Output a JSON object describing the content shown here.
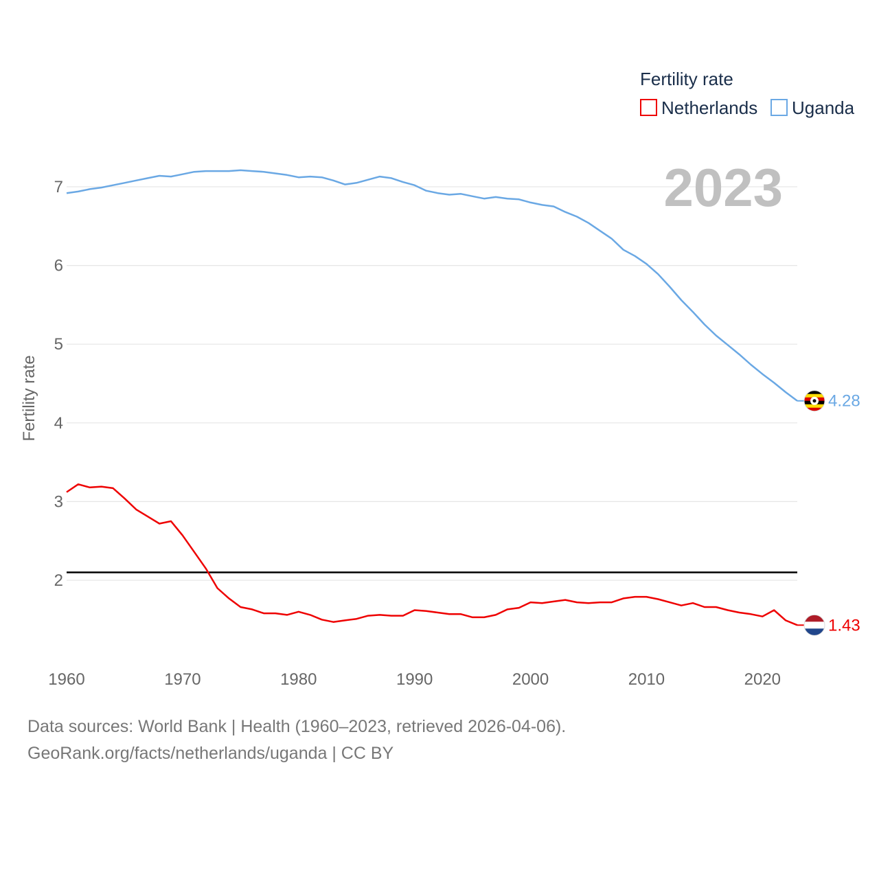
{
  "chart_data": {
    "type": "line",
    "title": "Fertility rate",
    "ylabel": "Fertility rate",
    "xlabel": "",
    "xlim": [
      1960,
      2023
    ],
    "ylim": [
      1.0,
      7.5
    ],
    "x_ticks": [
      1960,
      1970,
      1980,
      1990,
      2000,
      2010,
      2020
    ],
    "y_ticks": [
      2,
      3,
      4,
      5,
      6,
      7
    ],
    "grid": true,
    "legend_position": "top-right",
    "reference_line": {
      "y": 2.1,
      "color": "#000000"
    },
    "year_label": "2023",
    "x": [
      1960,
      1961,
      1962,
      1963,
      1964,
      1965,
      1966,
      1967,
      1968,
      1969,
      1970,
      1971,
      1972,
      1973,
      1974,
      1975,
      1976,
      1977,
      1978,
      1979,
      1980,
      1981,
      1982,
      1983,
      1984,
      1985,
      1986,
      1987,
      1988,
      1989,
      1990,
      1991,
      1992,
      1993,
      1994,
      1995,
      1996,
      1997,
      1998,
      1999,
      2000,
      2001,
      2002,
      2003,
      2004,
      2005,
      2006,
      2007,
      2008,
      2009,
      2010,
      2011,
      2012,
      2013,
      2014,
      2015,
      2016,
      2017,
      2018,
      2019,
      2020,
      2021,
      2022,
      2023
    ],
    "series": [
      {
        "name": "Netherlands",
        "color": "#ee0000",
        "end_label": "1.43",
        "flag": "netherlands-flag",
        "values": [
          3.12,
          3.22,
          3.18,
          3.19,
          3.17,
          3.04,
          2.9,
          2.81,
          2.72,
          2.75,
          2.57,
          2.36,
          2.15,
          1.9,
          1.77,
          1.66,
          1.63,
          1.58,
          1.58,
          1.56,
          1.6,
          1.56,
          1.5,
          1.47,
          1.49,
          1.51,
          1.55,
          1.56,
          1.55,
          1.55,
          1.62,
          1.61,
          1.59,
          1.57,
          1.57,
          1.53,
          1.53,
          1.56,
          1.63,
          1.65,
          1.72,
          1.71,
          1.73,
          1.75,
          1.72,
          1.71,
          1.72,
          1.72,
          1.77,
          1.79,
          1.79,
          1.76,
          1.72,
          1.68,
          1.71,
          1.66,
          1.66,
          1.62,
          1.59,
          1.57,
          1.54,
          1.62,
          1.49,
          1.43
        ]
      },
      {
        "name": "Uganda",
        "color": "#6aa8e4",
        "end_label": "4.28",
        "flag": "uganda-flag",
        "values": [
          6.92,
          6.94,
          6.97,
          6.99,
          7.02,
          7.05,
          7.08,
          7.11,
          7.14,
          7.13,
          7.16,
          7.19,
          7.2,
          7.2,
          7.2,
          7.21,
          7.2,
          7.19,
          7.17,
          7.15,
          7.12,
          7.13,
          7.12,
          7.08,
          7.03,
          7.05,
          7.09,
          7.13,
          7.11,
          7.06,
          7.02,
          6.95,
          6.92,
          6.9,
          6.91,
          6.88,
          6.85,
          6.87,
          6.85,
          6.84,
          6.8,
          6.77,
          6.75,
          6.68,
          6.62,
          6.54,
          6.44,
          6.34,
          6.2,
          6.12,
          6.02,
          5.89,
          5.73,
          5.56,
          5.41,
          5.25,
          5.11,
          4.99,
          4.87,
          4.74,
          4.62,
          4.51,
          4.39,
          4.28
        ]
      }
    ]
  },
  "footer": {
    "sources": "Data sources: World Bank | Health (1960–2023, retrieved 2026-04-06).",
    "url": "GeoRank.org/facts/netherlands/uganda | CC BY"
  }
}
